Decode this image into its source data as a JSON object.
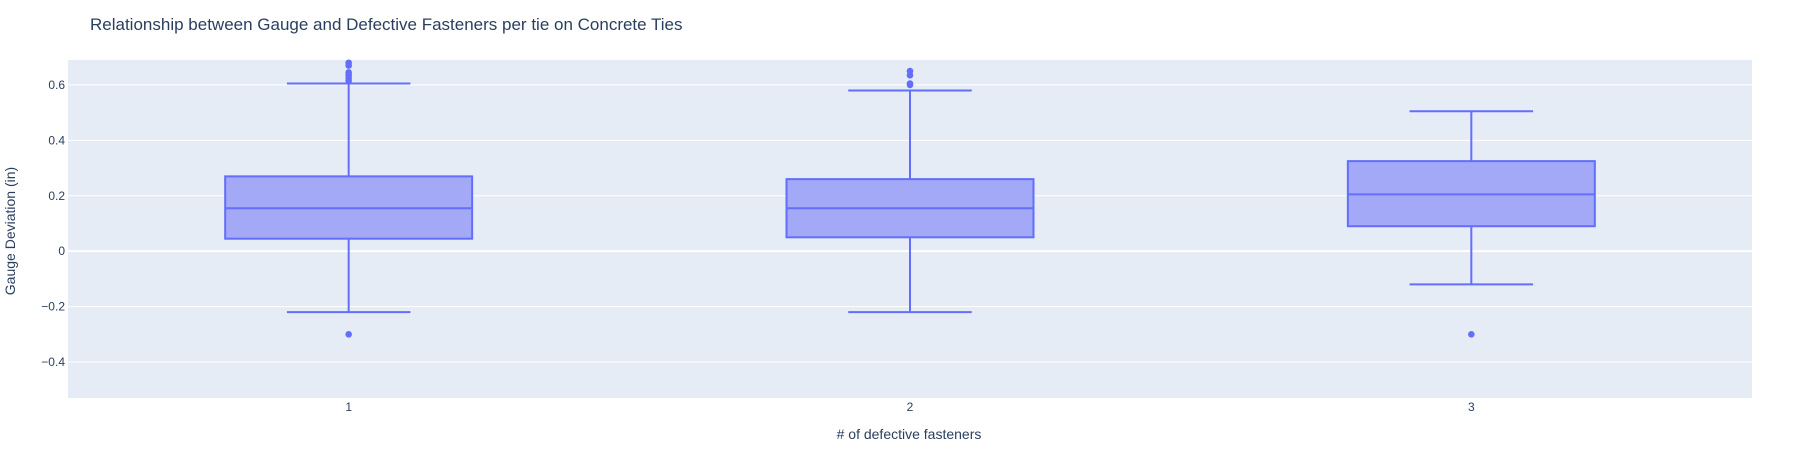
{
  "chart_data": {
    "type": "box",
    "title": "Relationship between Gauge and Defective Fasteners per tie on Concrete Ties",
    "xlabel": "# of defective fasteners",
    "ylabel": "Gauge Deviation (in)",
    "categories": [
      "1",
      "2",
      "3"
    ],
    "ylim": [
      -0.53,
      0.69
    ],
    "yticks": [
      -0.4,
      -0.2,
      0,
      0.2,
      0.4,
      0.6
    ],
    "ytick_labels": [
      "−0.4",
      "−0.2",
      "0",
      "0.2",
      "0.4",
      "0.6"
    ],
    "grid": true,
    "legend": "none",
    "boxes": [
      {
        "category": "1",
        "lower_fence": -0.22,
        "q1": 0.045,
        "median": 0.155,
        "q3": 0.27,
        "upper_fence": 0.605,
        "outliers": [
          -0.3,
          0.615,
          0.625,
          0.635,
          0.645,
          0.67,
          0.68
        ]
      },
      {
        "category": "2",
        "lower_fence": -0.22,
        "q1": 0.05,
        "median": 0.155,
        "q3": 0.26,
        "upper_fence": 0.58,
        "outliers": [
          0.6,
          0.605,
          0.635,
          0.65
        ]
      },
      {
        "category": "3",
        "lower_fence": -0.12,
        "q1": 0.09,
        "median": 0.205,
        "q3": 0.325,
        "upper_fence": 0.505,
        "outliers": [
          -0.3
        ]
      }
    ],
    "colors": {
      "box_line": "#636efa",
      "box_fill": "#a3a8f7",
      "plot_bg": "#e5ecf6",
      "grid": "#ffffff",
      "text": "#2a3f5f"
    }
  }
}
